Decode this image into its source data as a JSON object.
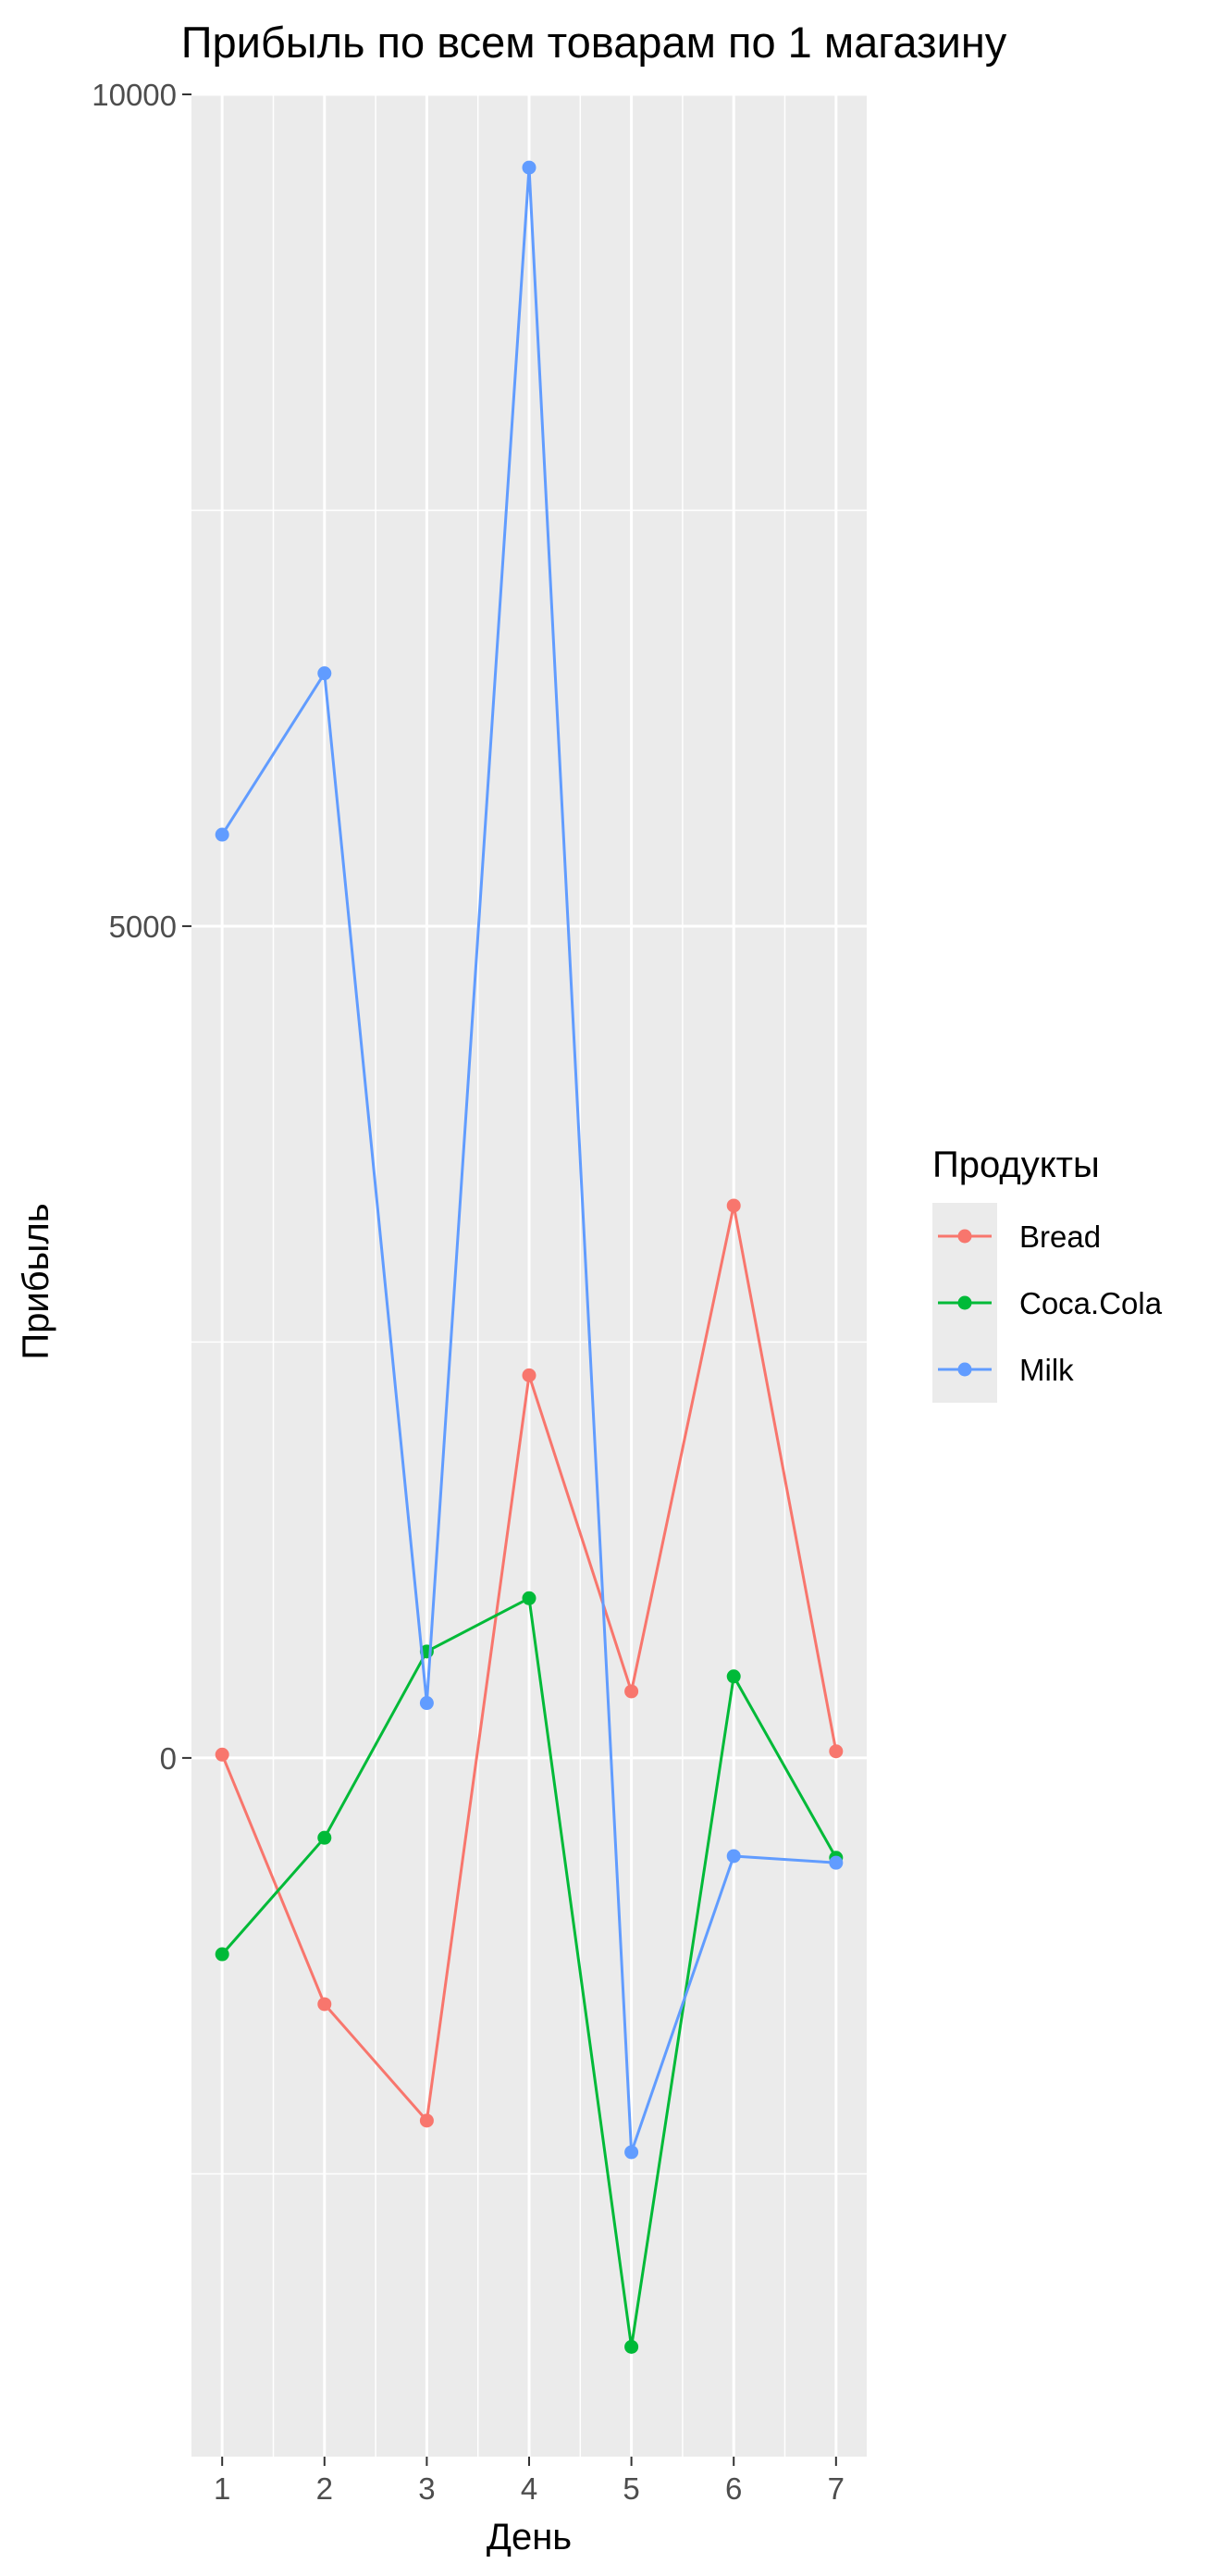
{
  "chart_data": {
    "type": "line",
    "title": "Прибыль по всем товарам по 1 магазину",
    "xlabel": "День",
    "ylabel": "Прибыль",
    "x": [
      1,
      2,
      3,
      4,
      5,
      6,
      7
    ],
    "x_ticks": [
      "1",
      "2",
      "3",
      "4",
      "5",
      "6",
      "7"
    ],
    "y_ticks": [
      0,
      5000,
      10000
    ],
    "y_tick_labels": [
      "0",
      "5000",
      "10000"
    ],
    "xlim": [
      0.7,
      7.3
    ],
    "ylim": [
      -4200,
      10000
    ],
    "grid": true,
    "legend": {
      "title": "Продукты",
      "position": "right"
    },
    "series": [
      {
        "name": "Bread",
        "color": "#f8766d",
        "values": [
          20,
          -1480,
          -2180,
          2300,
          400,
          3320,
          40
        ]
      },
      {
        "name": "Coca.Cola",
        "color": "#00ba38",
        "values": [
          -1180,
          -480,
          640,
          960,
          -3540,
          490,
          -600
        ]
      },
      {
        "name": "Milk",
        "color": "#619cff",
        "values": [
          5550,
          6520,
          330,
          9560,
          -2370,
          -590,
          -630
        ]
      }
    ]
  }
}
